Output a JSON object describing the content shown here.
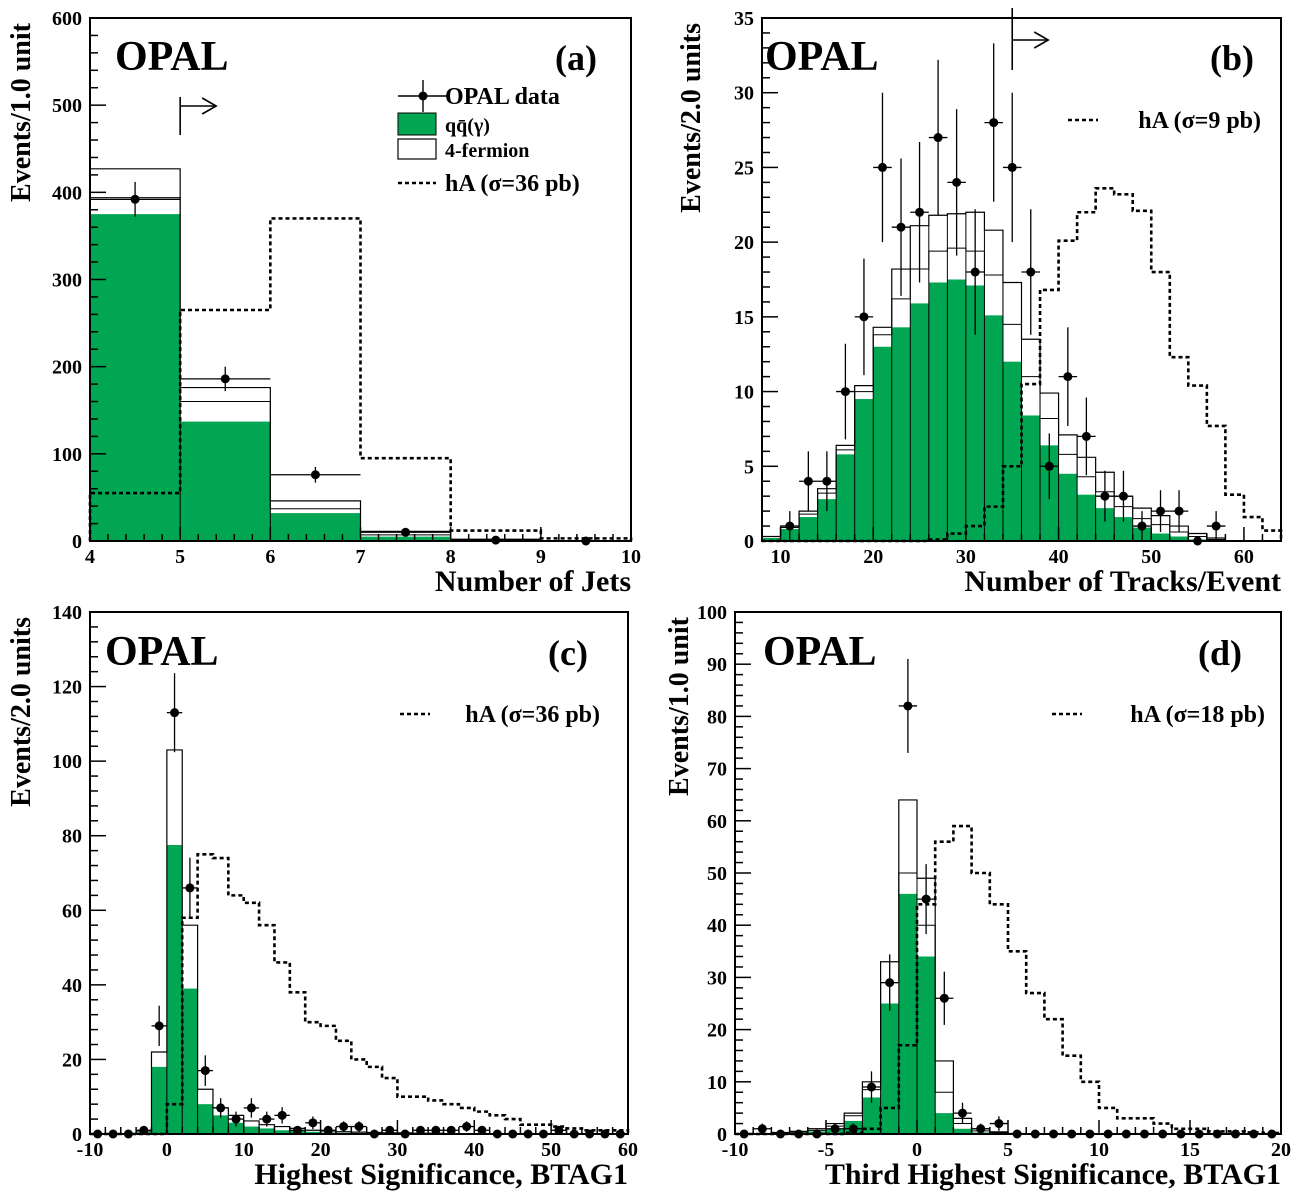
{
  "colors": {
    "qq": "#00a651",
    "line": "#000000"
  },
  "chart_data": [
    {
      "id": "a",
      "type": "bar",
      "panel_label": "(a)",
      "experiment_label": "OPAL",
      "xlabel": "Number of Jets",
      "ylabel": "Events/1.0 unit",
      "xlim": [
        4,
        10
      ],
      "ylim": [
        0,
        600
      ],
      "xticks": [
        4,
        5,
        6,
        7,
        8,
        9,
        10
      ],
      "yticks": [
        0,
        100,
        200,
        300,
        400,
        500,
        600
      ],
      "bin_edges": [
        4,
        5,
        6,
        7,
        8,
        9,
        10
      ],
      "series": [
        {
          "name": "qq̄(γ)",
          "kind": "filled",
          "values": [
            375,
            137,
            32,
            5,
            1,
            0
          ]
        },
        {
          "name": "4-fermion",
          "kind": "stacked-total",
          "values": [
            427,
            176,
            46,
            11,
            2,
            0
          ]
        },
        {
          "name": "hA (σ=36 pb)",
          "kind": "dotted",
          "values": [
            55,
            265,
            370,
            95,
            12,
            3
          ]
        },
        {
          "name": "OPAL data",
          "kind": "points",
          "x": [
            4.5,
            5.5,
            6.5,
            7.5,
            8.5,
            9.5
          ],
          "y": [
            392,
            186,
            76,
            10,
            1,
            0
          ],
          "err": [
            20,
            14,
            9,
            3,
            1,
            0
          ]
        }
      ],
      "inner_line": [
        394,
        160,
        37,
        7,
        1,
        0
      ],
      "cut": {
        "x": 5,
        "direction": "right"
      },
      "legend": {
        "data": "OPAL data",
        "qq": "qq̄(γ)",
        "fermion": "4-fermion",
        "signal": "hA (σ=36 pb)"
      }
    },
    {
      "id": "b",
      "type": "bar",
      "panel_label": "(b)",
      "experiment_label": "OPAL",
      "xlabel": "Number of Tracks/Event",
      "ylabel": "Events/2.0 units",
      "xlim": [
        8,
        64
      ],
      "ylim": [
        0,
        35
      ],
      "xticks": [
        10,
        20,
        30,
        40,
        50,
        60
      ],
      "yticks": [
        0,
        5,
        10,
        15,
        20,
        25,
        30,
        35
      ],
      "bin_edges": [
        8,
        10,
        12,
        14,
        16,
        18,
        20,
        22,
        24,
        26,
        28,
        30,
        32,
        34,
        36,
        38,
        40,
        42,
        44,
        46,
        48,
        50,
        52,
        54,
        56,
        58,
        60,
        62,
        64
      ],
      "series": [
        {
          "name": "qq̄(γ)",
          "kind": "filled",
          "values": [
            0.2,
            0.8,
            1.6,
            2.8,
            5.8,
            9.5,
            13,
            14.3,
            15.9,
            17.3,
            17.5,
            17.1,
            15.1,
            12,
            8.4,
            6.4,
            4.5,
            3.1,
            2.2,
            1.6,
            0.9,
            0.5,
            0.3,
            0.1,
            0,
            0,
            0,
            0
          ]
        },
        {
          "name": "4-fermion",
          "kind": "stacked-total",
          "values": [
            0.3,
            1.0,
            2.0,
            3.5,
            6.4,
            10.4,
            14.3,
            18.2,
            21.1,
            21.8,
            21.9,
            22.0,
            20.8,
            17.3,
            13.5,
            9.9,
            7.1,
            5.6,
            4.6,
            3.0,
            2.2,
            1.7,
            1.0,
            0.5,
            0.2,
            0,
            0,
            0
          ]
        },
        {
          "name": "hA (σ=9 pb)",
          "kind": "dotted",
          "values": [
            0,
            0,
            0,
            0,
            0,
            0,
            0,
            0,
            0,
            0.1,
            0.5,
            1.0,
            2.3,
            5.0,
            10.5,
            16.8,
            20.1,
            22.0,
            23.6,
            23.2,
            22.1,
            18.0,
            12.3,
            10.4,
            7.7,
            3.1,
            1.6,
            0.7
          ]
        },
        {
          "name": "OPAL data",
          "kind": "points",
          "x": [
            11,
            13,
            15,
            17,
            19,
            21,
            23,
            25,
            27,
            29,
            31,
            33,
            35,
            37,
            39,
            41,
            43,
            45,
            47,
            49,
            51,
            53,
            55,
            57
          ],
          "y": [
            1,
            4,
            4,
            10,
            15,
            25,
            21,
            22,
            27,
            24,
            18,
            28,
            25,
            18,
            5,
            11,
            7,
            3,
            3,
            1,
            2,
            2,
            0,
            1
          ],
          "err": [
            1,
            2,
            2,
            3.2,
            3.9,
            5,
            4.6,
            4.7,
            5.2,
            4.9,
            4.2,
            5.3,
            5,
            4.2,
            2.2,
            3.3,
            2.6,
            1.7,
            1.7,
            1,
            1.4,
            1.4,
            0,
            1
          ]
        }
      ],
      "inner_line": [
        0.3,
        0.9,
        1.8,
        3.2,
        6.1,
        10,
        13.8,
        16.2,
        18.2,
        19.4,
        19.6,
        19.4,
        17.8,
        14.5,
        11,
        8.2,
        5.8,
        4.3,
        3.3,
        2.3,
        1.5,
        1.1,
        0.6,
        0.3,
        0.1,
        0,
        0,
        0
      ],
      "cut": {
        "x": 35,
        "direction": "right"
      },
      "legend": {
        "signal": "hA (σ=9 pb)"
      }
    },
    {
      "id": "c",
      "type": "bar",
      "panel_label": "(c)",
      "experiment_label": "OPAL",
      "xlabel": "Highest Significance, BTAG1",
      "ylabel": "Events/2.0 units",
      "xlim": [
        -10,
        60
      ],
      "ylim": [
        0,
        140
      ],
      "xticks": [
        -10,
        0,
        10,
        20,
        30,
        40,
        50,
        60
      ],
      "yticks": [
        0,
        20,
        40,
        60,
        80,
        100,
        120,
        140
      ],
      "bin_edges": [
        -10,
        -8,
        -6,
        -4,
        -2,
        0,
        2,
        4,
        6,
        8,
        10,
        12,
        14,
        16,
        18,
        20,
        22,
        24,
        26,
        28,
        30,
        32,
        34,
        36,
        38,
        40,
        42,
        44,
        46,
        48,
        50,
        52,
        54,
        56,
        58,
        60
      ],
      "series": [
        {
          "name": "qq̄(γ)",
          "kind": "filled",
          "values": [
            0,
            0,
            0,
            0.5,
            18,
            77.5,
            39,
            8,
            5,
            3,
            2,
            1.5,
            1,
            0.8,
            0.6,
            0.4,
            0.3,
            0.2,
            0.2,
            0.1,
            0.1,
            0.1,
            0,
            0,
            0,
            0,
            0,
            0,
            0,
            0,
            0,
            0,
            0,
            0,
            0
          ]
        },
        {
          "name": "4-fermion",
          "kind": "stacked-total",
          "values": [
            0,
            0,
            0,
            0.8,
            22,
            103,
            56,
            12,
            7,
            5,
            3.5,
            2.5,
            2,
            1.5,
            1,
            0.8,
            0.6,
            0.5,
            0.4,
            0.3,
            0.3,
            0.2,
            0.2,
            0.1,
            0.1,
            0.1,
            0,
            0,
            0,
            0,
            0,
            0,
            0,
            0,
            0
          ]
        },
        {
          "name": "hA (σ=36 pb)",
          "kind": "dotted",
          "values": [
            0,
            0,
            0,
            0,
            0,
            8,
            58,
            75,
            74,
            64,
            62,
            56,
            46,
            38,
            30,
            29,
            25,
            20,
            18,
            15,
            10,
            10,
            9,
            8,
            7,
            6,
            5,
            4,
            2.5,
            2.5,
            2,
            1.5,
            1,
            1,
            1
          ]
        },
        {
          "name": "OPAL data",
          "kind": "points",
          "x": [
            -9,
            -7,
            -5,
            -3,
            -1,
            1,
            3,
            5,
            7,
            9,
            11,
            13,
            15,
            17,
            19,
            21,
            23,
            25,
            27,
            29,
            31,
            33,
            35,
            37,
            39,
            41,
            43,
            45,
            47,
            49,
            51,
            53,
            55,
            57,
            59
          ],
          "y": [
            0,
            0,
            0,
            1,
            29,
            113,
            66,
            17,
            7,
            4,
            7,
            4,
            5,
            1,
            3,
            1,
            2,
            2,
            0,
            1,
            0,
            1,
            1,
            1,
            2,
            1,
            0,
            0,
            0,
            0,
            1,
            0,
            0,
            0,
            0
          ],
          "err": [
            0,
            0,
            0,
            1,
            5.4,
            10.6,
            8.1,
            4.1,
            2.6,
            2,
            2.6,
            2,
            2.2,
            1,
            1.7,
            1,
            1.4,
            1.4,
            0,
            1,
            0,
            1,
            1,
            1,
            1.4,
            1,
            0,
            0,
            0,
            0,
            1,
            0,
            0,
            0,
            0
          ]
        }
      ],
      "inner_line": [],
      "legend": {
        "signal": "hA (σ=36 pb)"
      }
    },
    {
      "id": "d",
      "type": "bar",
      "panel_label": "(d)",
      "experiment_label": "OPAL",
      "xlabel": "Third Highest Significance, BTAG1",
      "ylabel": "Events/1.0 unit",
      "xlim": [
        -10,
        20
      ],
      "ylim": [
        0,
        100
      ],
      "xticks": [
        -10,
        -5,
        0,
        5,
        10,
        15,
        20
      ],
      "yticks": [
        0,
        10,
        20,
        30,
        40,
        50,
        60,
        70,
        80,
        90,
        100
      ],
      "bin_edges": [
        -10,
        -9,
        -8,
        -7,
        -6,
        -5,
        -4,
        -3,
        -2,
        -1,
        0,
        1,
        2,
        3,
        4,
        5,
        6,
        7,
        8,
        9,
        10,
        11,
        12,
        13,
        14,
        15,
        16,
        17,
        18,
        19,
        20
      ],
      "series": [
        {
          "name": "qq̄(γ)",
          "kind": "filled",
          "values": [
            0,
            0,
            0.2,
            0.3,
            0.5,
            1,
            2.5,
            7,
            25,
            46,
            34,
            4,
            1,
            0.3,
            0.1,
            0,
            0,
            0,
            0,
            0,
            0,
            0,
            0,
            0,
            0,
            0,
            0,
            0,
            0,
            0
          ]
        },
        {
          "name": "4-fermion",
          "kind": "stacked-total",
          "values": [
            0,
            0,
            0.3,
            0.5,
            1,
            2,
            4,
            10,
            33,
            64,
            49,
            14,
            3,
            1,
            0.4,
            0.1,
            0,
            0,
            0,
            0,
            0,
            0,
            0,
            0,
            0,
            0,
            0,
            0,
            0,
            0
          ]
        },
        {
          "name": "hA (σ=18 pb)",
          "kind": "dotted",
          "values": [
            0,
            0,
            0,
            0,
            0,
            0,
            0.2,
            1,
            5,
            17,
            44,
            56,
            59,
            50,
            44,
            35,
            27,
            22,
            15,
            10,
            5,
            3,
            3,
            2,
            1,
            1,
            0.5,
            0.5,
            0.3,
            0.2
          ]
        },
        {
          "name": "OPAL data",
          "kind": "points",
          "x": [
            -9.5,
            -8.5,
            -7.5,
            -6.5,
            -5.5,
            -4.5,
            -3.5,
            -2.5,
            -1.5,
            -0.5,
            0.5,
            1.5,
            2.5,
            3.5,
            4.5,
            5.5,
            6.5,
            7.5,
            8.5,
            9.5,
            10.5,
            11.5,
            12.5,
            13.5,
            14.5,
            15.5,
            16.5,
            17.5,
            18.5,
            19.5
          ],
          "y": [
            0,
            1,
            0,
            0,
            0,
            1,
            1,
            9,
            29,
            82,
            45,
            26,
            4,
            1,
            2,
            0,
            0,
            0,
            0,
            0,
            0,
            0,
            0,
            0,
            0,
            0,
            0,
            0,
            0,
            0
          ],
          "err": [
            0,
            1,
            0,
            0,
            0,
            1,
            1,
            3,
            5.4,
            9,
            6.7,
            5.1,
            2,
            1,
            1.4,
            0,
            0,
            0,
            0,
            0,
            0,
            0,
            0,
            0,
            0,
            0,
            0,
            0,
            0,
            0
          ]
        }
      ],
      "inner_line": [
        0,
        0,
        0.25,
        0.4,
        0.7,
        1.5,
        3.5,
        8.5,
        29,
        50,
        40,
        8,
        2,
        0.6,
        0.2,
        0,
        0,
        0,
        0,
        0,
        0,
        0,
        0,
        0,
        0,
        0,
        0,
        0,
        0,
        0
      ],
      "legend": {
        "signal": "hA (σ=18 pb)"
      }
    }
  ]
}
